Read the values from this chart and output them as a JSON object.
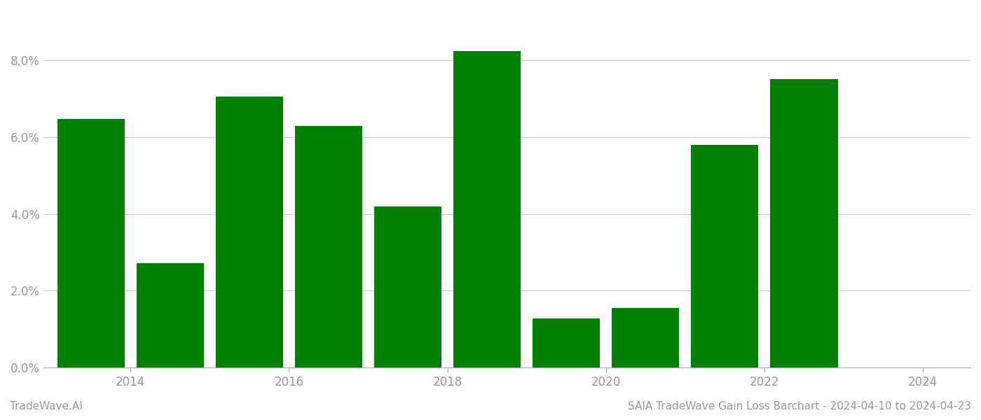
{
  "years": [
    2014,
    2015,
    2016,
    2017,
    2018,
    2019,
    2020,
    2021,
    2022,
    2023
  ],
  "values": [
    0.0648,
    0.0272,
    0.0705,
    0.063,
    0.042,
    0.0825,
    0.0128,
    0.0155,
    0.058,
    0.0752
  ],
  "bar_color": "#008000",
  "background_color": "#ffffff",
  "title": "SAIA TradeWave Gain Loss Barchart - 2024-04-10 to 2024-04-23",
  "footer_left": "TradeWave.AI",
  "ylim": [
    0,
    0.093
  ],
  "ytick_values": [
    0.0,
    0.02,
    0.04,
    0.06,
    0.08
  ],
  "xtick_labels": [
    "2014",
    "2016",
    "2018",
    "2020",
    "2022",
    "2024"
  ],
  "xtick_positions": [
    2014.5,
    2016.5,
    2018.5,
    2020.5,
    2022.5,
    2024.5
  ],
  "grid_color": "#cccccc",
  "axis_color": "#aaaaaa",
  "text_color": "#999999",
  "footer_fontsize": 11,
  "title_fontsize": 11,
  "bar_width": 0.85
}
